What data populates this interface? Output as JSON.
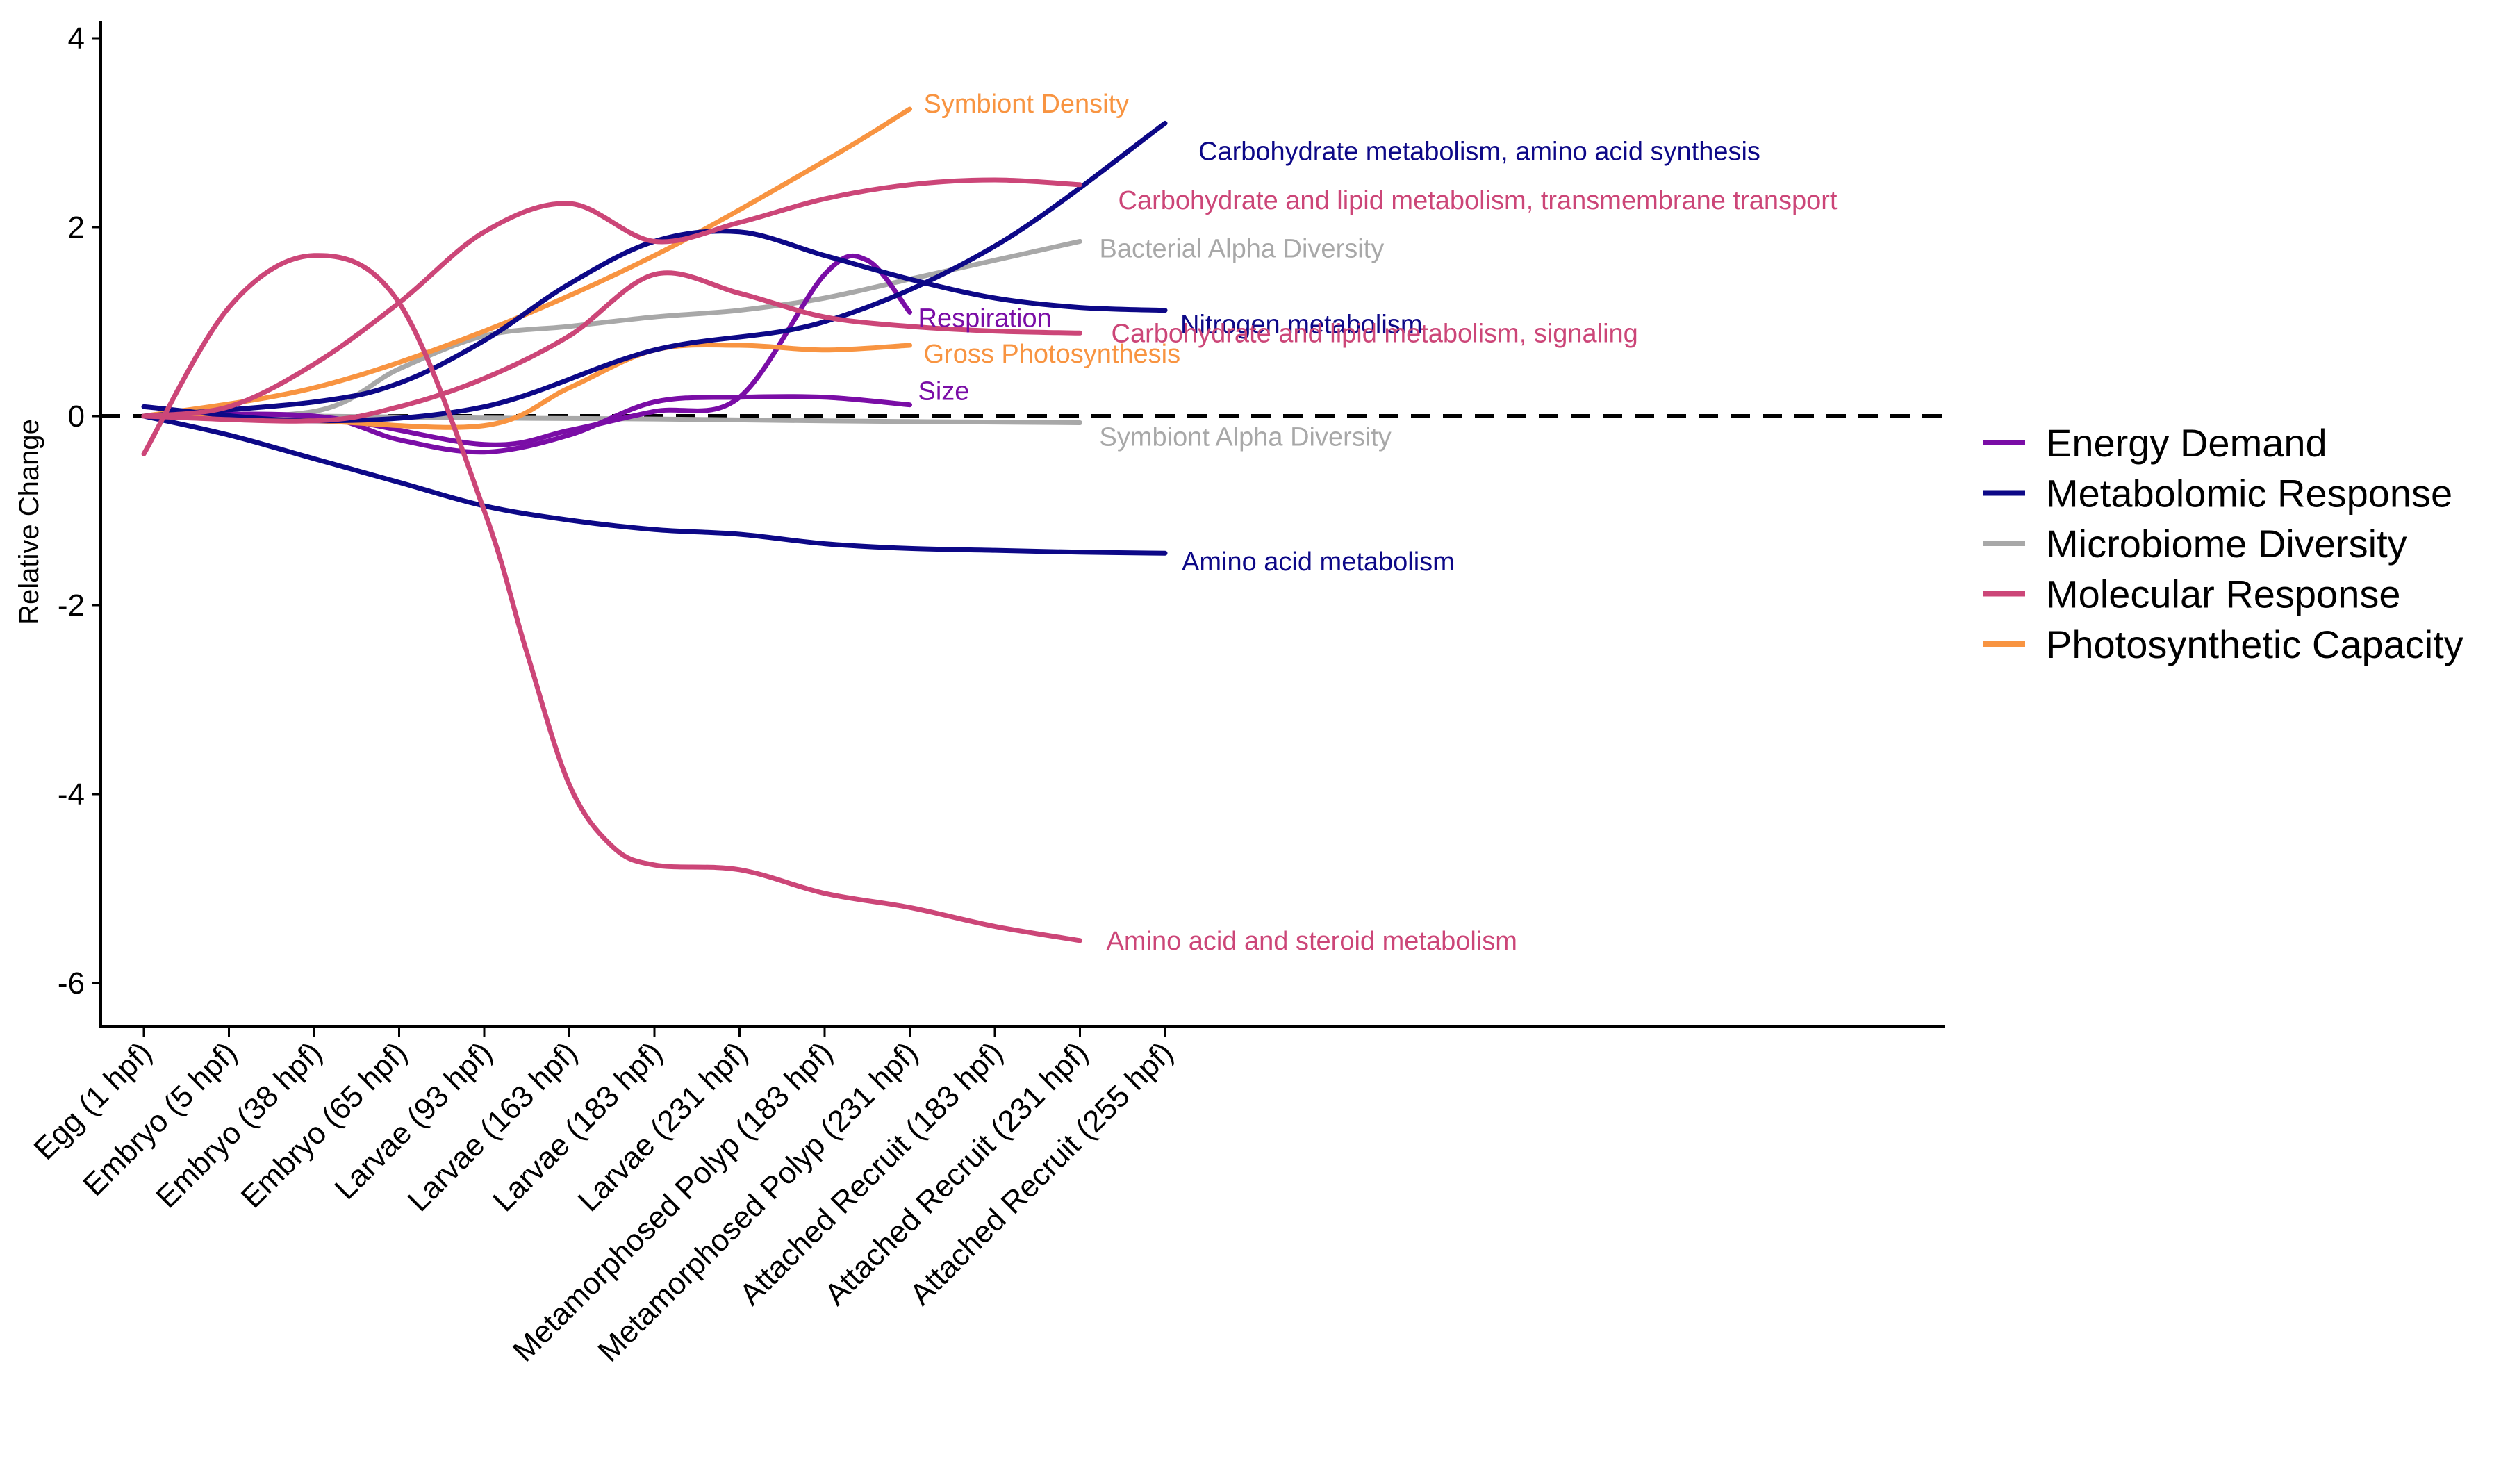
{
  "chart_data": {
    "type": "line",
    "xlabel": "",
    "ylabel": "Relative Change",
    "ylim": [
      -6.5,
      4.2
    ],
    "y_ticks": [
      -6,
      -4,
      -2,
      0,
      2,
      4
    ],
    "y_tick_labels": [
      "-6",
      "-4",
      "-2",
      "0",
      "2",
      "4"
    ],
    "categories": [
      "Egg (1 hpf)",
      "Embryo (5 hpf)",
      "Embryo (38 hpf)",
      "Embryo (65 hpf)",
      "Larvae (93 hpf)",
      "Larvae (163 hpf)",
      "Larvae (183 hpf)",
      "Larvae (231 hpf)",
      "Metamorphosed Polyp (183 hpf)",
      "Metamorphosed Polyp (231 hpf)",
      "Attached Recruit (183 hpf)",
      "Attached Recruit (231 hpf)",
      "Attached Recruit (255 hpf)"
    ],
    "reference_line": {
      "y": 0,
      "style": "dashed"
    },
    "grid": false,
    "legend_position": "right",
    "groups": [
      {
        "name": "Energy Demand",
        "color": "#7A0DA6"
      },
      {
        "name": "Metabolomic Response",
        "color": "#0D0887"
      },
      {
        "name": "Microbiome Diversity",
        "color": "#A8A8A8"
      },
      {
        "name": "Molecular Response",
        "color": "#CC4678"
      },
      {
        "name": "Photosynthetic Capacity",
        "color": "#F89441"
      }
    ],
    "series": [
      {
        "label": "Symbiont Density",
        "group": 4,
        "x": [
          0,
          2,
          4,
          6,
          8,
          9
        ],
        "y": [
          0.0,
          0.3,
          0.9,
          1.7,
          2.7,
          3.25
        ]
      },
      {
        "label": "Gross Photosynthesis",
        "group": 4,
        "x": [
          0,
          2,
          4,
          5,
          6,
          7,
          8,
          9
        ],
        "y": [
          0.0,
          -0.05,
          -0.1,
          0.3,
          0.7,
          0.75,
          0.7,
          0.75
        ]
      },
      {
        "label": "Respiration",
        "group": 0,
        "x": [
          0,
          2,
          4,
          5,
          6,
          7,
          8,
          8.5,
          9
        ],
        "y": [
          0.0,
          0.0,
          -0.3,
          -0.15,
          0.05,
          0.2,
          1.5,
          1.65,
          1.1
        ]
      },
      {
        "label": "Size",
        "group": 0,
        "x": [
          0,
          2,
          3,
          4,
          5,
          6,
          7,
          8,
          9
        ],
        "y": [
          0.0,
          0.0,
          -0.25,
          -0.38,
          -0.2,
          0.15,
          0.2,
          0.2,
          0.12
        ]
      },
      {
        "label": "Carbohydrate metabolism, amino acid synthesis",
        "group": 1,
        "x": [
          0,
          2,
          4,
          6,
          8,
          10,
          12
        ],
        "y": [
          0.1,
          -0.05,
          0.1,
          0.7,
          1.0,
          1.8,
          3.1
        ]
      },
      {
        "label": "Nitrogen metabolism",
        "group": 1,
        "x": [
          0,
          2,
          3,
          4,
          5,
          6,
          7,
          8,
          9,
          10,
          11,
          12
        ],
        "y": [
          0.0,
          0.15,
          0.35,
          0.8,
          1.4,
          1.85,
          1.95,
          1.7,
          1.45,
          1.25,
          1.15,
          1.12
        ]
      },
      {
        "label": "Amino acid metabolism",
        "group": 1,
        "x": [
          0,
          1,
          2,
          3,
          4,
          5,
          6,
          7,
          8,
          9,
          10,
          11,
          12
        ],
        "y": [
          0.0,
          -0.2,
          -0.45,
          -0.7,
          -0.95,
          -1.1,
          -1.2,
          -1.25,
          -1.35,
          -1.4,
          -1.42,
          -1.44,
          -1.45
        ]
      },
      {
        "label": "Bacterial Alpha Diversity",
        "group": 2,
        "x": [
          0,
          2,
          3,
          4,
          5,
          6,
          7,
          8,
          9,
          10,
          11
        ],
        "y": [
          0.0,
          0.05,
          0.5,
          0.85,
          0.95,
          1.05,
          1.12,
          1.25,
          1.45,
          1.65,
          1.85
        ]
      },
      {
        "label": "Symbiont Alpha Diversity",
        "group": 2,
        "x": [
          0,
          2,
          4,
          6,
          8,
          11
        ],
        "y": [
          0.0,
          0.0,
          -0.02,
          -0.03,
          -0.05,
          -0.07
        ]
      },
      {
        "label": "Carbohydrate and lipid metabolism, transmembrane transport",
        "group": 3,
        "x": [
          0,
          1,
          2,
          3,
          4,
          5,
          6,
          7,
          8,
          9,
          10,
          11
        ],
        "y": [
          0.0,
          0.1,
          0.55,
          1.2,
          1.95,
          2.25,
          1.85,
          2.05,
          2.3,
          2.45,
          2.5,
          2.45
        ]
      },
      {
        "label": "Carbohydrate and lipid metabolism, signaling",
        "group": 3,
        "x": [
          0,
          2,
          3,
          4,
          5,
          6,
          7,
          8,
          9,
          10,
          11
        ],
        "y": [
          0.0,
          -0.05,
          0.1,
          0.4,
          0.85,
          1.5,
          1.3,
          1.05,
          0.95,
          0.9,
          0.88
        ]
      },
      {
        "label": "Amino acid and steroid metabolism",
        "group": 3,
        "x": [
          0,
          1,
          2,
          3,
          4,
          4.5,
          5,
          5.5,
          6,
          7,
          8,
          9,
          10,
          11
        ],
        "y": [
          -0.4,
          1.15,
          1.7,
          1.2,
          -1.0,
          -2.5,
          -3.9,
          -4.55,
          -4.75,
          -4.8,
          -5.05,
          -5.2,
          -5.4,
          -5.55
        ]
      }
    ]
  }
}
